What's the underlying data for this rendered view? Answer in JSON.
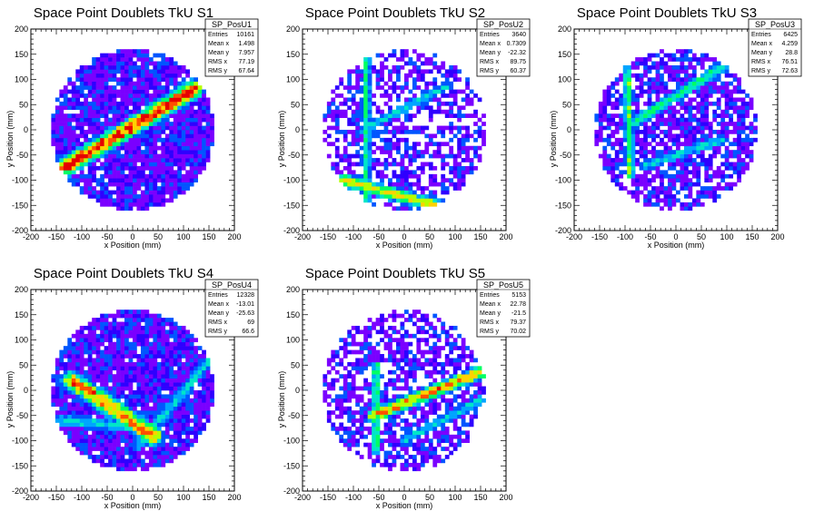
{
  "chart_data": [
    {
      "type": "heatmap",
      "title": "Space Point Doublets TkU S1",
      "xlabel": "x Position (mm)",
      "ylabel": "y Position (mm)",
      "xlim": [
        -200,
        200
      ],
      "ylim": [
        -200,
        200
      ],
      "xticks": [
        "-200",
        "-150",
        "-100",
        "-50",
        "0",
        "50",
        "100",
        "150",
        "200"
      ],
      "yticks": [
        "-200",
        "-150",
        "-100",
        "-50",
        "0",
        "50",
        "100",
        "150",
        "200"
      ],
      "stats": {
        "name": "SP_PosU1",
        "rows": [
          [
            "Entries",
            "10161"
          ],
          [
            "Mean x",
            "1.498"
          ],
          [
            "Mean y",
            "7.957"
          ],
          [
            "RMS x",
            "77.19"
          ],
          [
            "RMS y",
            "67.64"
          ]
        ]
      },
      "occupancy": 0.92,
      "bands": [
        {
          "x1": -135,
          "y1": -75,
          "x2": 120,
          "y2": 80,
          "peak": 1.0,
          "width": 13
        }
      ]
    },
    {
      "type": "heatmap",
      "title": "Space Point Doublets TkU S2",
      "xlabel": "x Position (mm)",
      "ylabel": "y Position (mm)",
      "xlim": [
        -200,
        200
      ],
      "ylim": [
        -200,
        200
      ],
      "xticks": [
        "-200",
        "-150",
        "-100",
        "-50",
        "0",
        "50",
        "100",
        "150",
        "200"
      ],
      "yticks": [
        "-200",
        "-150",
        "-100",
        "-50",
        "0",
        "50",
        "100",
        "150",
        "200"
      ],
      "stats": {
        "name": "SP_PosU2",
        "rows": [
          [
            "Entries",
            "3640"
          ],
          [
            "Mean x",
            "0.7309"
          ],
          [
            "Mean y",
            "-22.32"
          ],
          [
            "RMS x",
            "89.75"
          ],
          [
            "RMS y",
            "60.37"
          ]
        ]
      },
      "occupancy": 0.55,
      "bands": [
        {
          "x1": -75,
          "y1": 140,
          "x2": -75,
          "y2": -140,
          "peak": 0.55,
          "width": 7
        },
        {
          "x1": -80,
          "y1": 0,
          "x2": 80,
          "y2": 85,
          "peak": 0.45,
          "width": 8
        },
        {
          "x1": -120,
          "y1": -100,
          "x2": 80,
          "y2": -155,
          "peak": 0.75,
          "width": 10
        }
      ]
    },
    {
      "type": "heatmap",
      "title": "Space Point Doublets TkU S3",
      "xlabel": "x Position (mm)",
      "ylabel": "y Position (mm)",
      "xlim": [
        -200,
        200
      ],
      "ylim": [
        -200,
        200
      ],
      "xticks": [
        "-200",
        "-150",
        "-100",
        "-50",
        "0",
        "50",
        "100",
        "150",
        "200"
      ],
      "yticks": [
        "-200",
        "-150",
        "-100",
        "-50",
        "0",
        "50",
        "100",
        "150",
        "200"
      ],
      "stats": {
        "name": "SP_PosU3",
        "rows": [
          [
            "Entries",
            "6425"
          ],
          [
            "Mean x",
            "4.259"
          ],
          [
            "Mean y",
            "28.8"
          ],
          [
            "RMS x",
            "76.51"
          ],
          [
            "RMS y",
            "72.63"
          ]
        ]
      },
      "occupancy": 0.72,
      "bands": [
        {
          "x1": -95,
          "y1": 120,
          "x2": -90,
          "y2": -90,
          "peak": 0.6,
          "width": 7
        },
        {
          "x1": -90,
          "y1": 10,
          "x2": 100,
          "y2": 130,
          "peak": 0.55,
          "width": 9
        },
        {
          "x1": -60,
          "y1": -70,
          "x2": 90,
          "y2": -20,
          "peak": 0.45,
          "width": 9
        }
      ]
    },
    {
      "type": "heatmap",
      "title": "Space Point Doublets TkU S4",
      "xlabel": "x Position (mm)",
      "ylabel": "y Position (mm)",
      "xlim": [
        -200,
        200
      ],
      "ylim": [
        -200,
        200
      ],
      "xticks": [
        "-200",
        "-150",
        "-100",
        "-50",
        "0",
        "50",
        "100",
        "150",
        "200"
      ],
      "yticks": [
        "-200",
        "-150",
        "-100",
        "-50",
        "0",
        "50",
        "100",
        "150",
        "200"
      ],
      "stats": {
        "name": "SP_PosU4",
        "rows": [
          [
            "Entries",
            "12328"
          ],
          [
            "Mean x",
            "-13.01"
          ],
          [
            "Mean y",
            "-25.63"
          ],
          [
            "RMS x",
            "69"
          ],
          [
            "RMS y",
            "66.6"
          ]
        ]
      },
      "occupancy": 0.94,
      "bands": [
        {
          "x1": -120,
          "y1": 20,
          "x2": 40,
          "y2": -90,
          "peak": 0.9,
          "width": 14
        },
        {
          "x1": -140,
          "y1": -60,
          "x2": 40,
          "y2": -75,
          "peak": 0.45,
          "width": 10
        },
        {
          "x1": 10,
          "y1": -110,
          "x2": 160,
          "y2": 70,
          "peak": 0.45,
          "width": 9
        }
      ]
    },
    {
      "type": "heatmap",
      "title": "Space Point Doublets TkU S5",
      "xlabel": "x Position (mm)",
      "ylabel": "y Position (mm)",
      "xlim": [
        -200,
        200
      ],
      "ylim": [
        -200,
        200
      ],
      "xticks": [
        "-200",
        "-150",
        "-100",
        "-50",
        "0",
        "50",
        "100",
        "150",
        "200"
      ],
      "yticks": [
        "-200",
        "-150",
        "-100",
        "-50",
        "0",
        "50",
        "100",
        "150",
        "200"
      ],
      "stats": {
        "name": "SP_PosU5",
        "rows": [
          [
            "Entries",
            "5153"
          ],
          [
            "Mean x",
            "22.78"
          ],
          [
            "Mean y",
            "-21.5"
          ],
          [
            "RMS x",
            "79.37"
          ],
          [
            "RMS y",
            "70.02"
          ]
        ]
      },
      "occupancy": 0.62,
      "bands": [
        {
          "x1": -55,
          "y1": 50,
          "x2": -55,
          "y2": -120,
          "peak": 0.6,
          "width": 7
        },
        {
          "x1": -60,
          "y1": -50,
          "x2": 160,
          "y2": 40,
          "peak": 0.85,
          "width": 10
        },
        {
          "x1": 0,
          "y1": -100,
          "x2": 150,
          "y2": -20,
          "peak": 0.45,
          "width": 9
        }
      ]
    }
  ],
  "colors": {
    "palette": [
      "#2e00ff",
      "#7a00ff",
      "#0055ff",
      "#00a5ff",
      "#00e6c8",
      "#00ff64",
      "#b4ff00",
      "#ffd200",
      "#ff5000",
      "#e60000"
    ],
    "frame": "#000000"
  }
}
